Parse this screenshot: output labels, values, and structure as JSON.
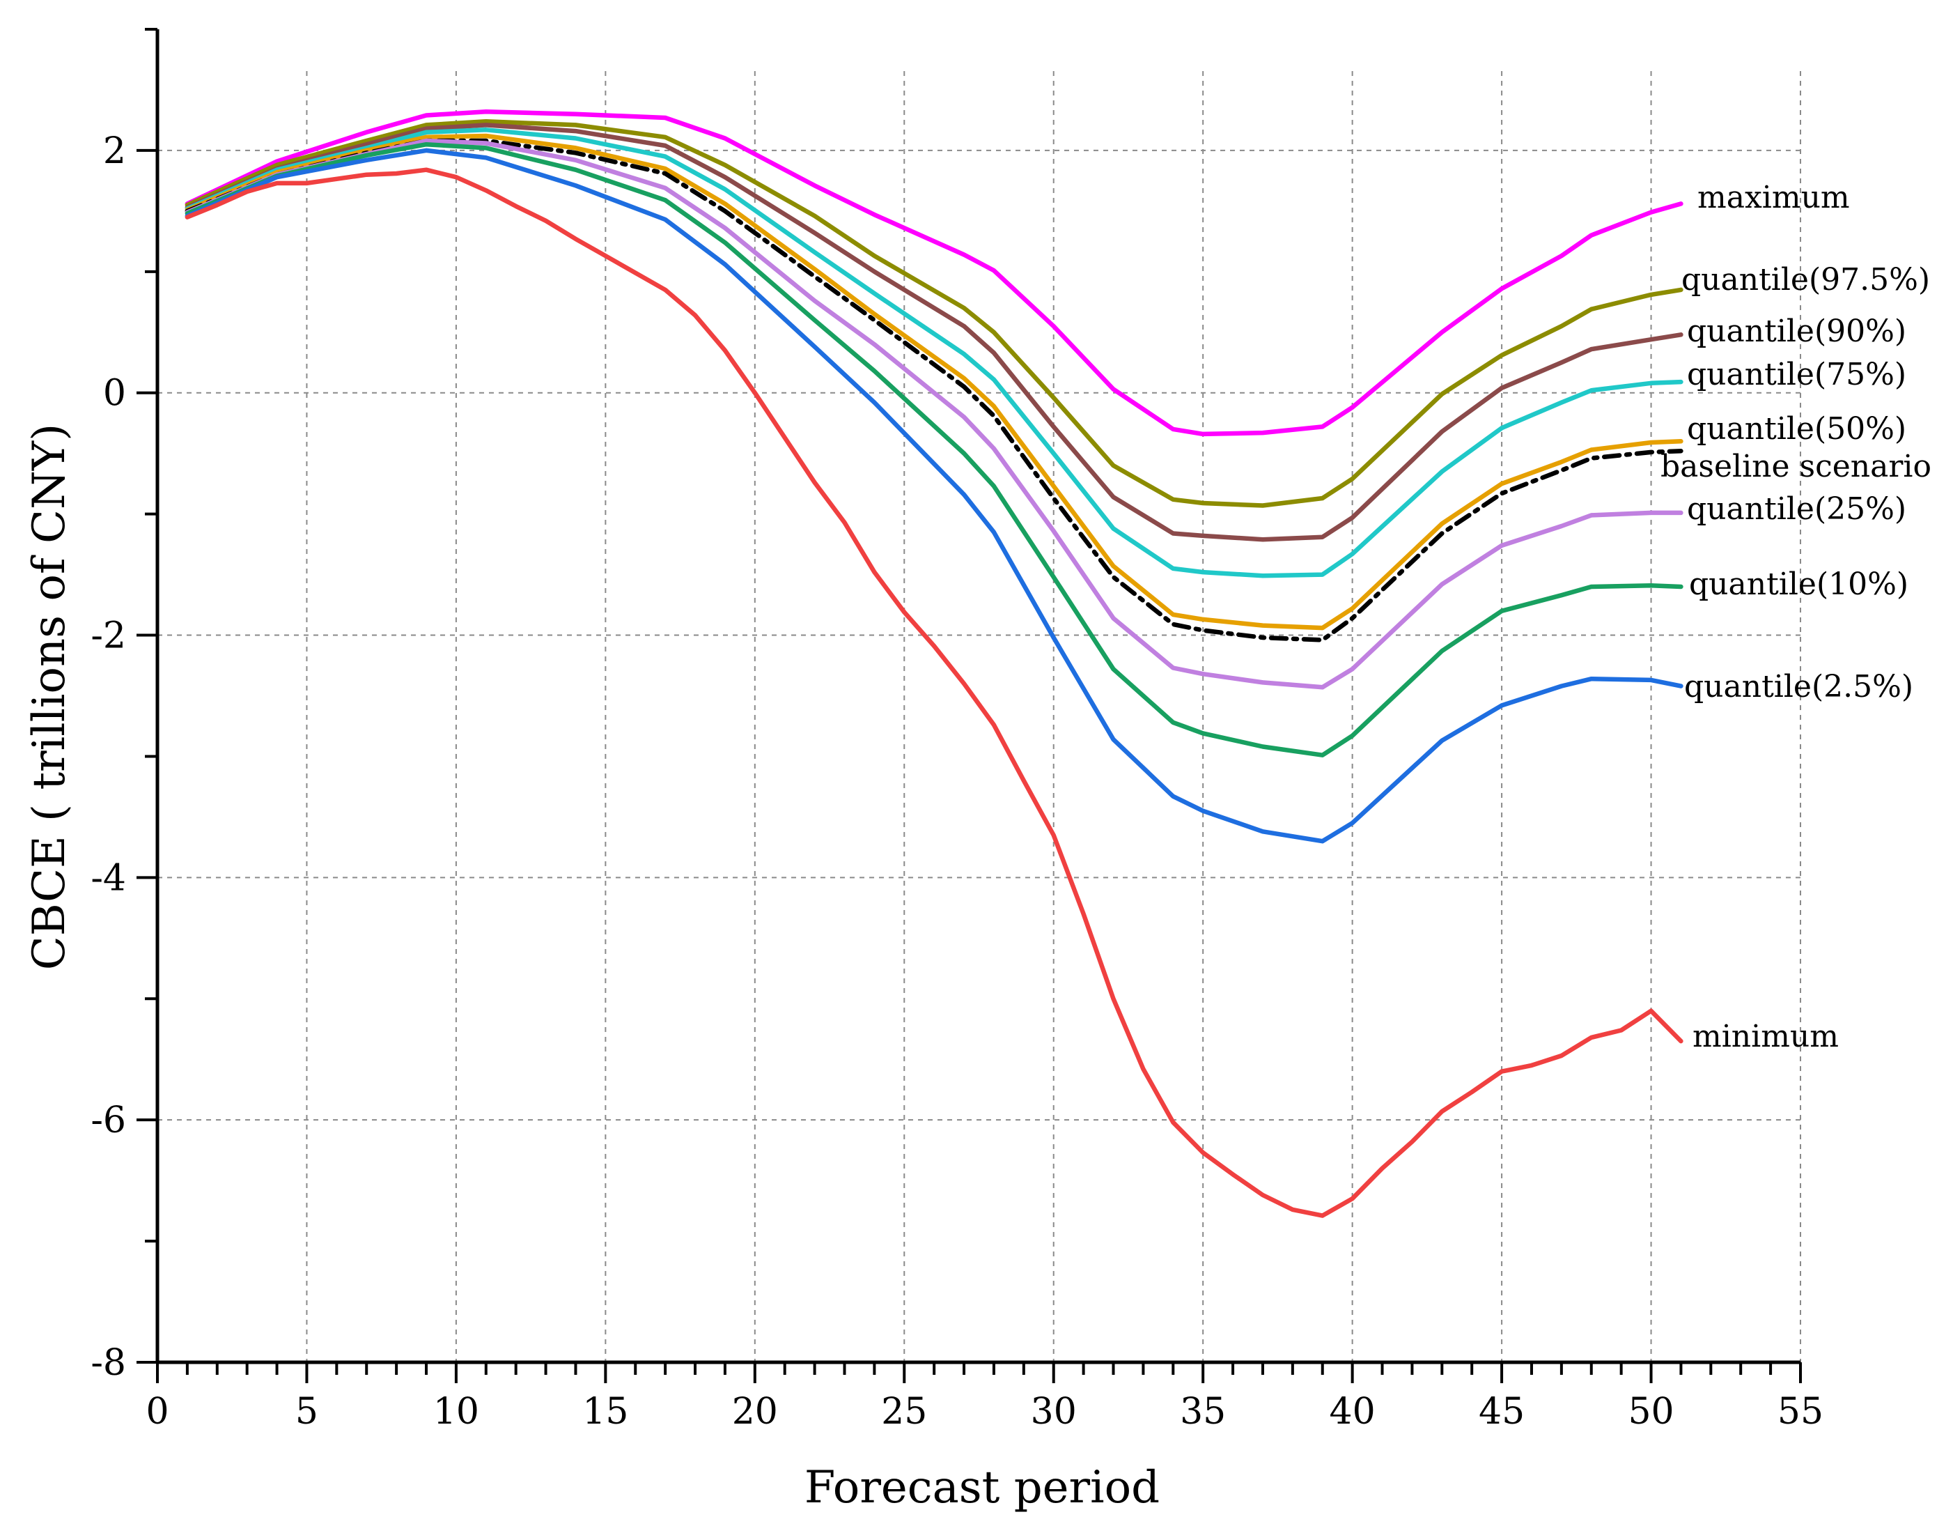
{
  "chart_data": {
    "type": "line",
    "title": "",
    "xlabel": "Forecast period",
    "ylabel": "CBCE ( trillions of CNY)",
    "xlim": [
      0,
      55
    ],
    "ylim": [
      -8,
      3
    ],
    "x_ticks": [
      0,
      5,
      10,
      15,
      20,
      25,
      30,
      35,
      40,
      45,
      50,
      55
    ],
    "y_ticks": [
      -8,
      -6,
      -4,
      -2,
      0,
      2
    ],
    "x_tick_labels": [
      "0",
      "5",
      "10",
      "15",
      "20",
      "25",
      "30",
      "35",
      "40",
      "45",
      "50",
      "55"
    ],
    "y_tick_labels": [
      "-8",
      "-6",
      "-4",
      "-2",
      "0",
      "2"
    ],
    "grid": true,
    "series": [
      {
        "name": "maximum",
        "color": "#ff00ff",
        "x": [
          1,
          4,
          7,
          9,
          11,
          14,
          17,
          19,
          22,
          24,
          27,
          28,
          30,
          32,
          34,
          35,
          37,
          39,
          40,
          43,
          45,
          47,
          48,
          50,
          51
        ],
        "y": [
          1.56,
          1.91,
          2.15,
          2.29,
          2.32,
          2.3,
          2.27,
          2.1,
          1.71,
          1.47,
          1.14,
          1.01,
          0.55,
          0.03,
          -0.3,
          -0.34,
          -0.33,
          -0.28,
          -0.12,
          0.5,
          0.86,
          1.13,
          1.3,
          1.49,
          1.56
        ]
      },
      {
        "name": "quantile(97.5%)",
        "color": "#8c8c00",
        "x": [
          1,
          4,
          7,
          9,
          11,
          14,
          17,
          19,
          22,
          24,
          27,
          28,
          30,
          32,
          34,
          35,
          37,
          39,
          40,
          43,
          45,
          47,
          48,
          50,
          51
        ],
        "y": [
          1.55,
          1.88,
          2.08,
          2.21,
          2.24,
          2.21,
          2.11,
          1.88,
          1.46,
          1.13,
          0.7,
          0.5,
          -0.04,
          -0.6,
          -0.88,
          -0.91,
          -0.93,
          -0.87,
          -0.71,
          -0.01,
          0.31,
          0.55,
          0.69,
          0.81,
          0.85
        ]
      },
      {
        "name": "quantile(90%)",
        "color": "#8b4a4a",
        "x": [
          1,
          4,
          7,
          9,
          11,
          14,
          17,
          19,
          22,
          24,
          27,
          28,
          30,
          32,
          34,
          35,
          37,
          39,
          40,
          43,
          45,
          47,
          48,
          50,
          51
        ],
        "y": [
          1.53,
          1.85,
          2.05,
          2.18,
          2.21,
          2.16,
          2.04,
          1.78,
          1.32,
          1.0,
          0.55,
          0.33,
          -0.28,
          -0.86,
          -1.16,
          -1.18,
          -1.21,
          -1.19,
          -1.03,
          -0.32,
          0.04,
          0.25,
          0.36,
          0.44,
          0.48
        ]
      },
      {
        "name": "quantile(75%)",
        "color": "#20c8c8",
        "x": [
          1,
          4,
          7,
          9,
          11,
          14,
          17,
          19,
          22,
          24,
          27,
          28,
          30,
          32,
          34,
          35,
          37,
          39,
          40,
          43,
          45,
          47,
          48,
          50,
          51
        ],
        "y": [
          1.52,
          1.84,
          2.02,
          2.15,
          2.17,
          2.1,
          1.95,
          1.68,
          1.16,
          0.82,
          0.32,
          0.11,
          -0.5,
          -1.12,
          -1.45,
          -1.48,
          -1.51,
          -1.5,
          -1.33,
          -0.65,
          -0.29,
          -0.08,
          0.02,
          0.08,
          0.09
        ]
      },
      {
        "name": "quantile(50%)",
        "color": "#e6a000",
        "x": [
          1,
          4,
          7,
          9,
          11,
          14,
          17,
          19,
          22,
          24,
          27,
          28,
          30,
          32,
          34,
          35,
          37,
          39,
          40,
          43,
          45,
          47,
          48,
          50,
          51
        ],
        "y": [
          1.51,
          1.82,
          2.0,
          2.11,
          2.12,
          2.02,
          1.85,
          1.56,
          1.02,
          0.65,
          0.12,
          -0.11,
          -0.77,
          -1.43,
          -1.83,
          -1.87,
          -1.92,
          -1.94,
          -1.78,
          -1.08,
          -0.75,
          -0.57,
          -0.47,
          -0.41,
          -0.4
        ]
      },
      {
        "name": "baseline scenario",
        "color": "#000000",
        "dash": "22 10 5 10",
        "x": [
          1,
          4,
          7,
          9,
          11,
          14,
          17,
          19,
          22,
          24,
          27,
          28,
          30,
          32,
          34,
          35,
          37,
          39,
          40,
          43,
          45,
          47,
          48,
          50,
          51
        ],
        "y": [
          1.5,
          1.8,
          1.98,
          2.08,
          2.08,
          1.98,
          1.81,
          1.5,
          0.96,
          0.6,
          0.05,
          -0.19,
          -0.87,
          -1.52,
          -1.91,
          -1.96,
          -2.02,
          -2.04,
          -1.86,
          -1.16,
          -0.83,
          -0.64,
          -0.54,
          -0.49,
          -0.48
        ]
      },
      {
        "name": "quantile(25%)",
        "color": "#c080e0",
        "x": [
          1,
          4,
          7,
          9,
          11,
          14,
          17,
          19,
          22,
          24,
          27,
          28,
          30,
          32,
          34,
          35,
          37,
          39,
          40,
          43,
          45,
          47,
          48,
          50,
          51
        ],
        "y": [
          1.49,
          1.8,
          1.97,
          2.08,
          2.06,
          1.92,
          1.69,
          1.36,
          0.76,
          0.4,
          -0.2,
          -0.46,
          -1.14,
          -1.86,
          -2.27,
          -2.32,
          -2.39,
          -2.43,
          -2.28,
          -1.58,
          -1.26,
          -1.1,
          -1.01,
          -0.99,
          -0.99
        ]
      },
      {
        "name": "quantile(10%)",
        "color": "#18a060",
        "x": [
          1,
          4,
          7,
          9,
          11,
          14,
          17,
          19,
          22,
          24,
          27,
          28,
          30,
          32,
          34,
          35,
          37,
          39,
          40,
          43,
          45,
          47,
          48,
          50,
          51
        ],
        "y": [
          1.48,
          1.79,
          1.96,
          2.05,
          2.02,
          1.84,
          1.59,
          1.24,
          0.6,
          0.18,
          -0.5,
          -0.77,
          -1.52,
          -2.28,
          -2.72,
          -2.81,
          -2.92,
          -2.99,
          -2.83,
          -2.13,
          -1.8,
          -1.67,
          -1.6,
          -1.59,
          -1.6
        ]
      },
      {
        "name": "quantile(2.5%)",
        "color": "#1e6ee0",
        "x": [
          1,
          4,
          7,
          9,
          11,
          14,
          17,
          19,
          22,
          24,
          27,
          28,
          30,
          32,
          34,
          35,
          37,
          39,
          40,
          43,
          45,
          47,
          48,
          50,
          51
        ],
        "y": [
          1.46,
          1.78,
          1.92,
          2.0,
          1.94,
          1.71,
          1.43,
          1.06,
          0.38,
          -0.08,
          -0.84,
          -1.15,
          -2.02,
          -2.86,
          -3.33,
          -3.45,
          -3.62,
          -3.7,
          -3.55,
          -2.87,
          -2.58,
          -2.42,
          -2.36,
          -2.37,
          -2.42
        ]
      },
      {
        "name": "minimum",
        "color": "#f04040",
        "x": [
          1,
          2,
          3,
          4,
          5,
          7,
          8,
          9,
          10,
          11,
          12,
          13,
          14,
          15,
          17,
          18,
          19,
          20,
          21,
          22,
          23,
          24,
          25,
          26,
          27,
          28,
          29,
          30,
          31,
          32,
          33,
          34,
          35,
          36,
          37,
          38,
          39,
          40,
          41,
          42,
          43,
          44,
          45,
          46,
          47,
          48,
          49,
          50,
          51
        ],
        "y": [
          1.45,
          1.55,
          1.66,
          1.73,
          1.73,
          1.8,
          1.81,
          1.84,
          1.78,
          1.67,
          1.54,
          1.42,
          1.27,
          1.13,
          0.85,
          0.64,
          0.35,
          0.0,
          -0.37,
          -0.74,
          -1.07,
          -1.48,
          -1.81,
          -2.09,
          -2.4,
          -2.74,
          -3.2,
          -3.65,
          -4.3,
          -5.0,
          -5.58,
          -6.02,
          -6.27,
          -6.45,
          -6.62,
          -6.74,
          -6.79,
          -6.65,
          -6.4,
          -6.18,
          -5.93,
          -5.77,
          -5.6,
          -5.55,
          -5.47,
          -5.32,
          -5.26,
          -5.1,
          -5.35
        ]
      }
    ]
  }
}
